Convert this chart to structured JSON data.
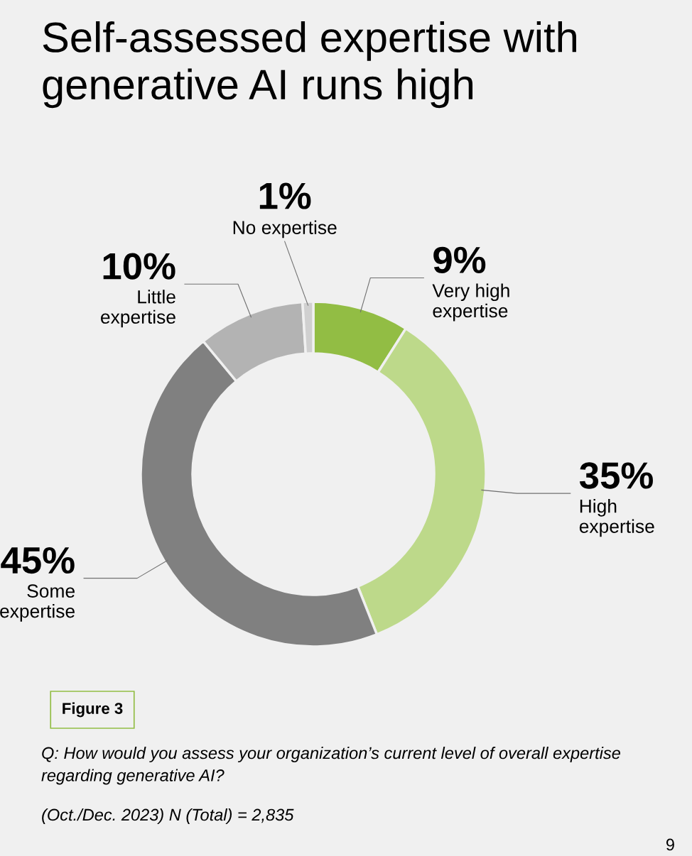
{
  "chart_data": {
    "type": "donut",
    "title": "Self-assessed expertise with generative AI runs high",
    "categories": [
      "Very high\nexpertise",
      "High\nexpertise",
      "Some\nexpertise",
      "Little\nexpertise",
      "No expertise"
    ],
    "values": [
      9,
      35,
      45,
      10,
      1
    ],
    "value_labels": [
      "9%",
      "35%",
      "45%",
      "10%",
      "1%"
    ],
    "colors": [
      "#92bd44",
      "#bdd98a",
      "#808080",
      "#b3b3b3",
      "#d0d0d0"
    ],
    "annotations": [
      "Figure 3",
      "Q: How would you assess your organization’s current level of overall expertise regarding generative AI?",
      "(Oct./Dec. 2023) N (Total) = 2,835",
      "9"
    ]
  }
}
